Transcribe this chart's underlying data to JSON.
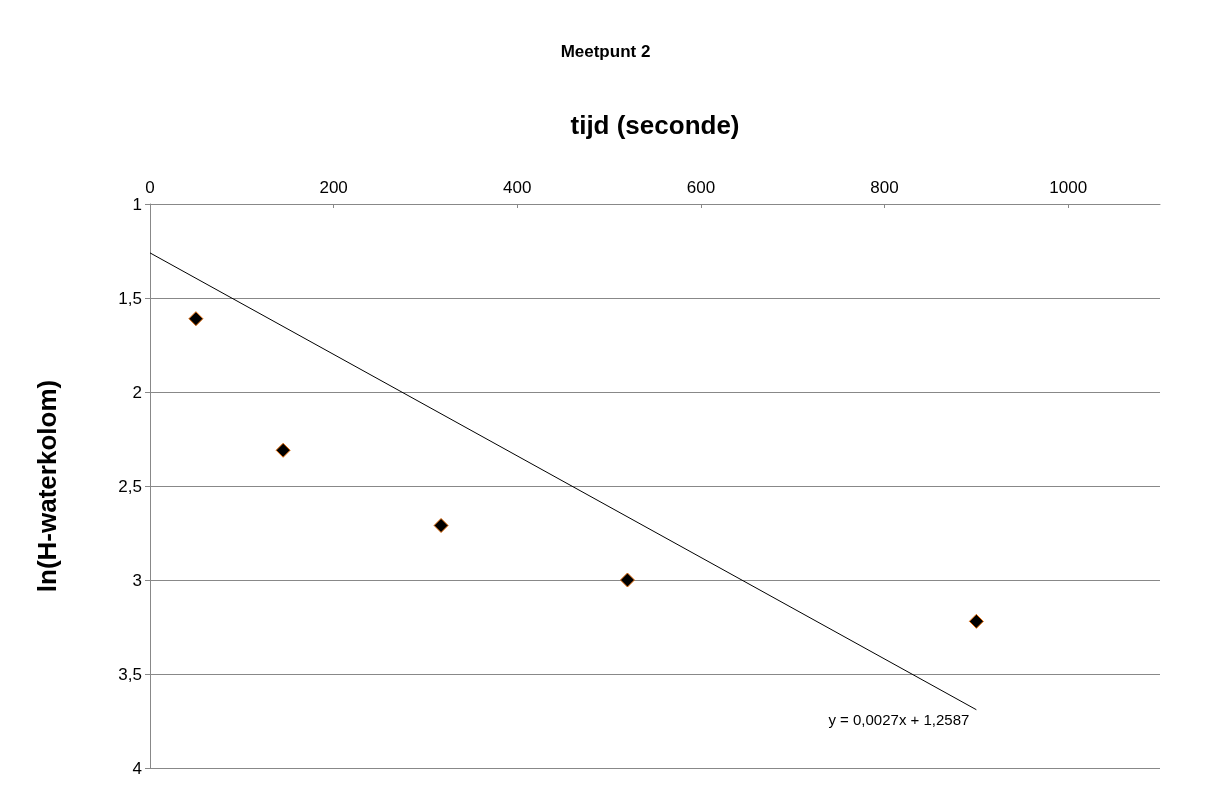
{
  "chart_data": {
    "type": "scatter",
    "title": "Meetpunt 2",
    "xlabel": "tijd (seconde)",
    "ylabel": "ln(H-waterkolom)",
    "xlim": [
      0,
      1100
    ],
    "xticks": [
      0,
      200,
      400,
      600,
      800,
      1000
    ],
    "ylim": [
      4,
      1
    ],
    "yticks": [
      1,
      {
        "value": 1.5,
        "label": "1,5"
      },
      2,
      {
        "value": 2.5,
        "label": "2,5"
      },
      3,
      {
        "value": 3.5,
        "label": "3,5"
      },
      4
    ],
    "grid": "y",
    "marker": "diamond",
    "series": [
      {
        "color": "#000000",
        "x": [
          50,
          145,
          317,
          520,
          900
        ],
        "values": [
          1.61,
          2.31,
          2.71,
          3.0,
          3.22
        ]
      },
      {
        "type": "line",
        "color": "#000000",
        "marker": "none",
        "x": [
          0,
          900
        ],
        "values": [
          1.26,
          3.69
        ]
      }
    ],
    "annotations": [
      {
        "text": "y = 0,0027x + 1,2587",
        "x": 900,
        "y": 3.69
      }
    ]
  }
}
